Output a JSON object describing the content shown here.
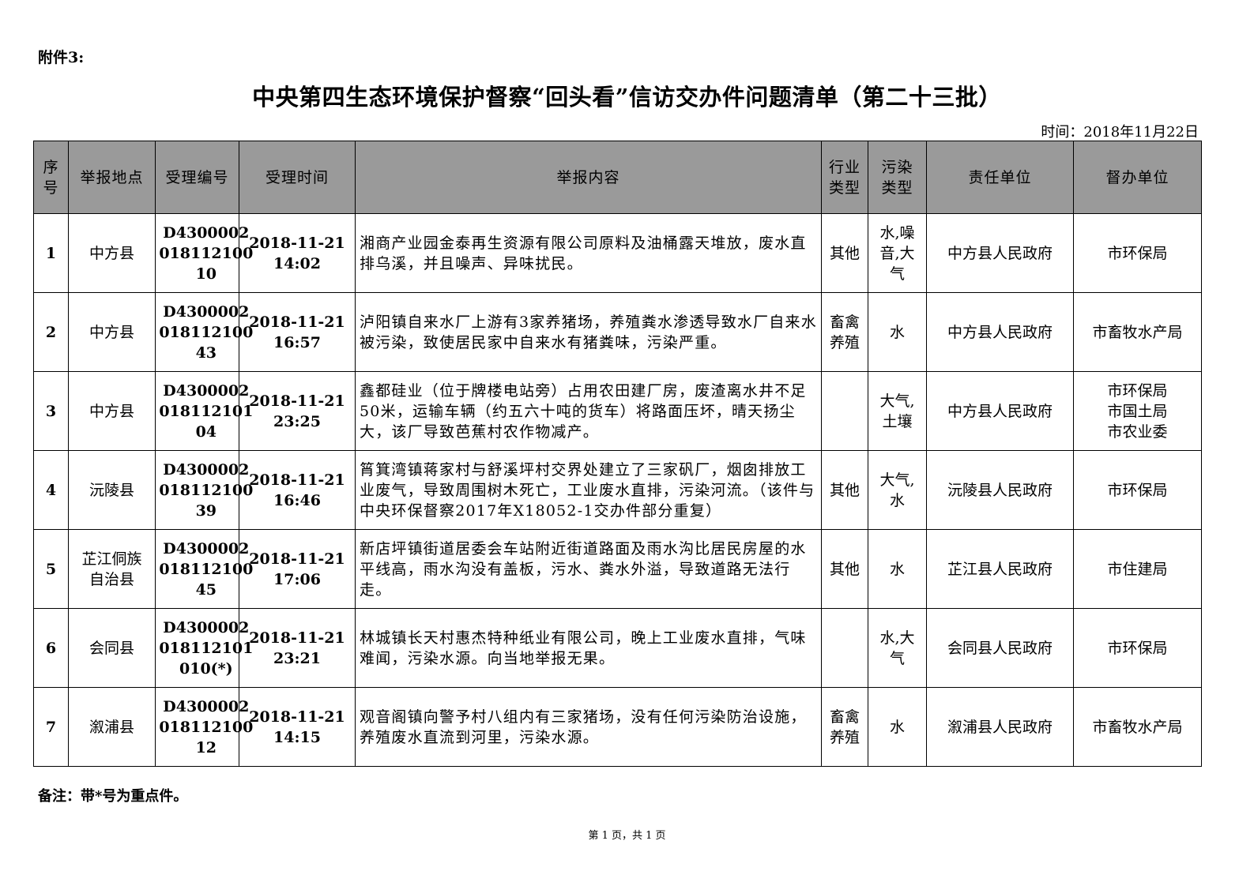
{
  "attachment_label": "附件3:",
  "title": "中央第四生态环境保护督察“回头看”信访交办件问题清单（第二十三批）",
  "date": "时间：2018年11月22日",
  "table": {
    "headers": [
      "序号",
      "举报地点",
      "受理编号",
      "受理时间",
      "举报内容",
      "行业类型",
      "污染类型",
      "责任单位",
      "督办单位"
    ],
    "rows": [
      {
        "no": "1",
        "location": "中方县",
        "id": "D430000201811210010",
        "time": "2018-11-21 14:02",
        "content": "湘商产业园金泰再生资源有限公司原料及油桶露天堆放，废水直排乌溪，并且噪声、异味扰民。",
        "industry": "其他",
        "pollution": "水,噪音,大气",
        "responsible": "中方县人民政府",
        "supervisor": "市环保局"
      },
      {
        "no": "2",
        "location": "中方县",
        "id": "D430000201811210043",
        "time": "2018-11-21 16:57",
        "content": "泸阳镇自来水厂上游有3家养猪场，养殖粪水渗透导致水厂自来水被污染，致使居民家中自来水有猪粪味，污染严重。",
        "industry": "畜禽养殖",
        "pollution": "水",
        "responsible": "中方县人民政府",
        "supervisor": "市畜牧水产局"
      },
      {
        "no": "3",
        "location": "中方县",
        "id": "D430000201811210104",
        "time": "2018-11-21 23:25",
        "content": "鑫都硅业（位于牌楼电站旁）占用农田建厂房，废渣离水井不足50米，运输车辆（约五六十吨的货车）将路面压坏，晴天扬尘大，该厂导致芭蕉村农作物减产。",
        "industry": "",
        "pollution": "大气,土壤",
        "responsible": "中方县人民政府",
        "supervisor": "市环保局 市国土局 市农业委"
      },
      {
        "no": "4",
        "location": "沅陵县",
        "id": "D430000201811210039",
        "time": "2018-11-21 16:46",
        "content": "筲箕湾镇蒋家村与舒溪坪村交界处建立了三家矾厂，烟囱排放工业废气，导致周围树木死亡，工业废水直排，污染河流。（该件与中央环保督察2017年X18052-1交办件部分重复）",
        "industry": "其他",
        "pollution": "大气,水",
        "responsible": "沅陵县人民政府",
        "supervisor": "市环保局"
      },
      {
        "no": "5",
        "location": "芷江侗族自治县",
        "id": "D430000201811210045",
        "time": "2018-11-21 17:06",
        "content": "新店坪镇街道居委会车站附近街道路面及雨水沟比居民房屋的水平线高，雨水沟没有盖板，污水、粪水外溢，导致道路无法行走。",
        "industry": "其他",
        "pollution": "水",
        "responsible": "芷江县人民政府",
        "supervisor": "市住建局"
      },
      {
        "no": "6",
        "location": "会同县",
        "id": "D4300002018112101010(*)",
        "time": "2018-11-21 23:21",
        "content": "林城镇长天村惠杰特种纸业有限公司，晚上工业废水直排，气味难闻，污染水源。向当地举报无果。",
        "industry": "",
        "pollution": "水,大气",
        "responsible": "会同县人民政府",
        "supervisor": "市环保局"
      },
      {
        "no": "7",
        "location": "溆浦县",
        "id": "D430000201811210012",
        "time": "2018-11-21 14:15",
        "content": "观音阁镇向警予村八组内有三家猪场，没有任何污染防治设施，养殖废水直流到河里，污染水源。",
        "industry": "畜禽养殖",
        "pollution": "水",
        "responsible": "溆浦县人民政府",
        "supervisor": "市畜牧水产局"
      }
    ]
  },
  "note": "备注：带*号为重点件。",
  "footer": "第 1 页，共 1 页"
}
